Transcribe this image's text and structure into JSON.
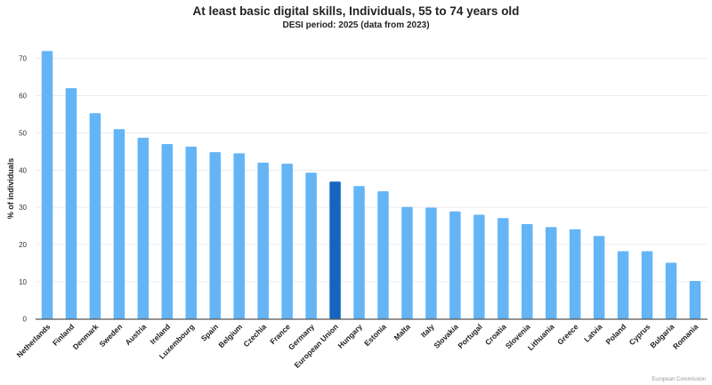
{
  "chart_data": {
    "type": "bar",
    "title": "At least basic digital skills, Individuals, 55 to 74 years old",
    "subtitle": "DESI period: 2025 (data from 2023)",
    "xlabel": "",
    "ylabel": "% of individuals",
    "ylim": [
      0,
      73
    ],
    "yticks": [
      0,
      10,
      20,
      30,
      40,
      50,
      60,
      70
    ],
    "grid": true,
    "categories": [
      "Netherlands",
      "Finland",
      "Denmark",
      "Sweden",
      "Austria",
      "Ireland",
      "Luxembourg",
      "Spain",
      "Belgium",
      "Czechia",
      "France",
      "Germany",
      "European Union",
      "Hungary",
      "Estonia",
      "Malta",
      "Italy",
      "Slovakia",
      "Portugal",
      "Croatia",
      "Slovenia",
      "Lithuania",
      "Greece",
      "Latvia",
      "Poland",
      "Cyprus",
      "Bulgaria",
      "Romania"
    ],
    "values": [
      72.0,
      62.0,
      55.3,
      51.0,
      48.7,
      47.0,
      46.3,
      44.8,
      44.5,
      42.0,
      41.7,
      39.3,
      36.9,
      35.7,
      34.3,
      30.1,
      29.9,
      28.9,
      28.0,
      27.1,
      25.5,
      24.7,
      24.1,
      22.3,
      18.2,
      18.2,
      15.1,
      10.2
    ],
    "highlight": "European Union",
    "colors": {
      "bar": "#64b5f6",
      "highlight": "#1565c0"
    },
    "footer": "European Commission"
  }
}
